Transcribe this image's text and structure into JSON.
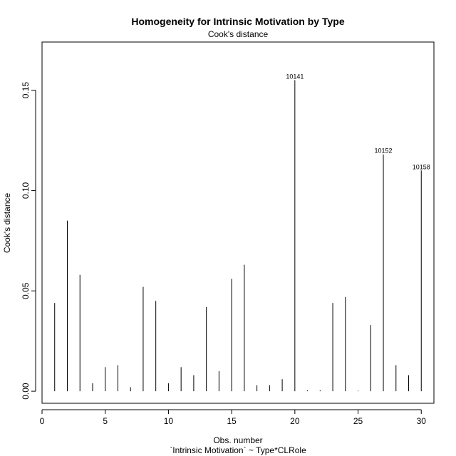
{
  "chart_data": {
    "type": "bar",
    "title": "Homogeneity for Intrinsic Motivation by Type",
    "subtitle": "Cook's distance",
    "xlabel": "Obs. number",
    "xlabel2": "`Intrinsic Motivation` ~ Type*CLRole",
    "ylabel": "Cook's distance",
    "xlim": [
      0,
      31
    ],
    "ylim": [
      -0.006,
      0.174
    ],
    "xticks": [
      0,
      5,
      10,
      15,
      20,
      25,
      30
    ],
    "yticks": [
      0.0,
      0.05,
      0.1,
      0.15
    ],
    "ytick_labels": [
      "0.00",
      "0.05",
      "0.10",
      "0.15"
    ],
    "x": [
      1,
      2,
      3,
      4,
      5,
      6,
      7,
      8,
      9,
      10,
      11,
      12,
      13,
      14,
      15,
      16,
      17,
      18,
      19,
      20,
      21,
      22,
      23,
      24,
      25,
      26,
      27,
      28,
      29,
      30
    ],
    "values": [
      0.044,
      0.085,
      0.058,
      0.004,
      0.012,
      0.013,
      0.002,
      0.052,
      0.045,
      0.004,
      0.012,
      0.008,
      0.042,
      0.01,
      0.056,
      0.063,
      0.003,
      0.003,
      0.006,
      0.155,
      0.0005,
      0.0005,
      0.044,
      0.047,
      0.0003,
      0.033,
      0.118,
      0.013,
      0.008,
      0.11
    ],
    "annotations": [
      {
        "x": 20,
        "y": 0.155,
        "text": "10141"
      },
      {
        "x": 27,
        "y": 0.118,
        "text": "10152"
      },
      {
        "x": 30,
        "y": 0.11,
        "text": "10158"
      }
    ],
    "grid": false,
    "color": "#000000"
  }
}
